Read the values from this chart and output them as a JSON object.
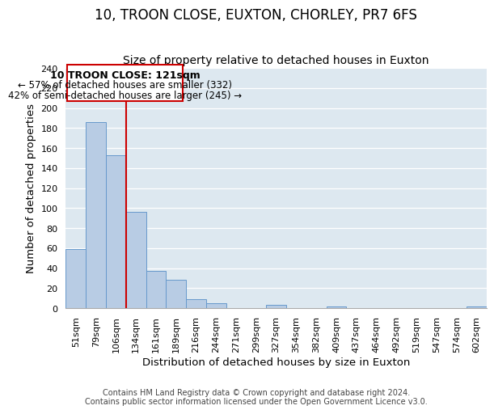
{
  "title": "10, TROON CLOSE, EUXTON, CHORLEY, PR7 6FS",
  "subtitle": "Size of property relative to detached houses in Euxton",
  "xlabel": "Distribution of detached houses by size in Euxton",
  "ylabel": "Number of detached properties",
  "bin_labels": [
    "51sqm",
    "79sqm",
    "106sqm",
    "134sqm",
    "161sqm",
    "189sqm",
    "216sqm",
    "244sqm",
    "271sqm",
    "299sqm",
    "327sqm",
    "354sqm",
    "382sqm",
    "409sqm",
    "437sqm",
    "464sqm",
    "492sqm",
    "519sqm",
    "547sqm",
    "574sqm",
    "602sqm"
  ],
  "bar_values": [
    59,
    186,
    153,
    96,
    37,
    28,
    9,
    5,
    0,
    0,
    3,
    0,
    0,
    2,
    0,
    0,
    0,
    0,
    0,
    0,
    2
  ],
  "bar_color": "#b8cce4",
  "bar_edge_color": "#6699cc",
  "bg_color": "#dde8f0",
  "ylim": [
    0,
    240
  ],
  "yticks": [
    0,
    20,
    40,
    60,
    80,
    100,
    120,
    140,
    160,
    180,
    200,
    220,
    240
  ],
  "property_line_x": 2.5,
  "property_label": "10 TROON CLOSE: 121sqm",
  "annotation_line1": "← 57% of detached houses are smaller (332)",
  "annotation_line2": "42% of semi-detached houses are larger (245) →",
  "box_color": "#ffffff",
  "box_edge_color": "#cc0000",
  "vline_color": "#cc0000",
  "footer1": "Contains HM Land Registry data © Crown copyright and database right 2024.",
  "footer2": "Contains public sector information licensed under the Open Government Licence v3.0.",
  "title_fontsize": 12,
  "subtitle_fontsize": 10,
  "axis_label_fontsize": 9.5,
  "tick_fontsize": 8,
  "annotation_fontsize": 8.5,
  "footer_fontsize": 7
}
